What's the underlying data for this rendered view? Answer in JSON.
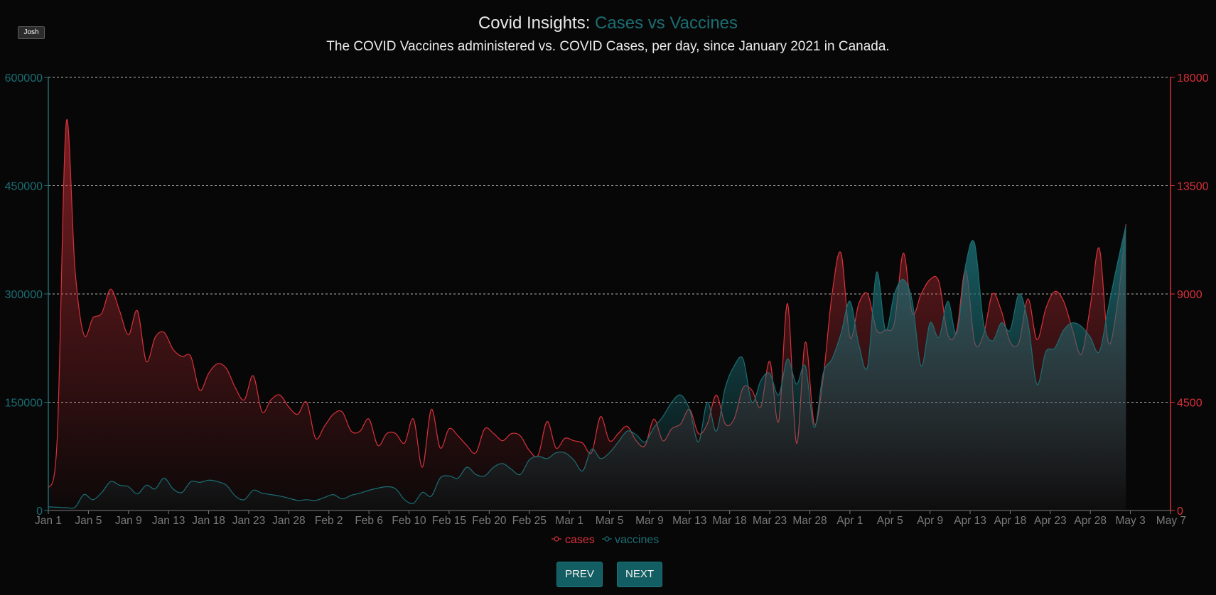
{
  "user": {
    "label": "Josh"
  },
  "header": {
    "title_prefix": "Covid Insights: ",
    "title_accent": "Cases vs Vaccines",
    "subtitle": "The COVID Vaccines administered vs. COVID Cases, per day, since January 2021 in Canada."
  },
  "colors": {
    "cases": "#d8313a",
    "vaccines": "#1b6e74",
    "grid": "#cfcfcf",
    "tick_text": "#7a7a7a"
  },
  "chart_data": {
    "type": "area",
    "x_ticks": [
      "Jan 1",
      "Jan 5",
      "Jan 9",
      "Jan 13",
      "Jan 18",
      "Jan 23",
      "Jan 28",
      "Feb 2",
      "Feb 6",
      "Feb 10",
      "Feb 15",
      "Feb 20",
      "Feb 25",
      "Mar 1",
      "Mar 5",
      "Mar 9",
      "Mar 13",
      "Mar 18",
      "Mar 23",
      "Mar 28",
      "Apr 1",
      "Apr 5",
      "Apr 9",
      "Apr 13",
      "Apr 18",
      "Apr 23",
      "Apr 28",
      "May 3",
      "May 7"
    ],
    "x_range_days": [
      0,
      126
    ],
    "y_left": {
      "ticks": [
        "0",
        "150000",
        "300000",
        "450000",
        "600000"
      ],
      "ylim": [
        0,
        600000
      ],
      "series": "vaccines"
    },
    "y_right": {
      "ticks": [
        "0",
        "4500",
        "9000",
        "13500",
        "18000"
      ],
      "ylim": [
        0,
        18000
      ],
      "series": "cases"
    },
    "grid": "horizontal dashed",
    "legend": "bottom-center",
    "series": [
      {
        "name": "cases",
        "axis": "right",
        "points": [
          [
            0,
            900
          ],
          [
            1,
            3000
          ],
          [
            2,
            16100
          ],
          [
            3,
            10000
          ],
          [
            4,
            7300
          ],
          [
            5,
            8000
          ],
          [
            6,
            8200
          ],
          [
            7,
            9200
          ],
          [
            8,
            8300
          ],
          [
            9,
            7300
          ],
          [
            10,
            8300
          ],
          [
            11,
            6200
          ],
          [
            12,
            7200
          ],
          [
            13,
            7400
          ],
          [
            14,
            6700
          ],
          [
            15,
            6400
          ],
          [
            16,
            6400
          ],
          [
            17,
            5000
          ],
          [
            18,
            5700
          ],
          [
            19,
            6100
          ],
          [
            20,
            5900
          ],
          [
            21,
            5100
          ],
          [
            22,
            4600
          ],
          [
            23,
            5600
          ],
          [
            24,
            4100
          ],
          [
            25,
            4600
          ],
          [
            26,
            4800
          ],
          [
            27,
            4300
          ],
          [
            28,
            4000
          ],
          [
            29,
            4500
          ],
          [
            30,
            3000
          ],
          [
            31,
            3500
          ],
          [
            32,
            4000
          ],
          [
            33,
            4100
          ],
          [
            34,
            3300
          ],
          [
            35,
            3300
          ],
          [
            36,
            3800
          ],
          [
            37,
            2700
          ],
          [
            38,
            3200
          ],
          [
            39,
            3200
          ],
          [
            40,
            2800
          ],
          [
            41,
            3800
          ],
          [
            42,
            1800
          ],
          [
            43,
            4200
          ],
          [
            44,
            2600
          ],
          [
            45,
            3400
          ],
          [
            46,
            3100
          ],
          [
            47,
            2700
          ],
          [
            48,
            2400
          ],
          [
            49,
            3400
          ],
          [
            50,
            3200
          ],
          [
            51,
            2900
          ],
          [
            52,
            3200
          ],
          [
            53,
            3100
          ],
          [
            54,
            2500
          ],
          [
            55,
            2300
          ],
          [
            56,
            3700
          ],
          [
            57,
            2600
          ],
          [
            58,
            3000
          ],
          [
            59,
            2900
          ],
          [
            60,
            2800
          ],
          [
            61,
            2400
          ],
          [
            62,
            3900
          ],
          [
            63,
            2900
          ],
          [
            64,
            3200
          ],
          [
            65,
            3500
          ],
          [
            66,
            2900
          ],
          [
            67,
            2700
          ],
          [
            68,
            3800
          ],
          [
            69,
            2900
          ],
          [
            70,
            3400
          ],
          [
            71,
            3600
          ],
          [
            72,
            4200
          ],
          [
            73,
            3200
          ],
          [
            74,
            3600
          ],
          [
            75,
            4800
          ],
          [
            76,
            3600
          ],
          [
            77,
            3800
          ],
          [
            78,
            5100
          ],
          [
            79,
            5000
          ],
          [
            80,
            4300
          ],
          [
            81,
            6200
          ],
          [
            82,
            3700
          ],
          [
            83,
            8600
          ],
          [
            84,
            2800
          ],
          [
            85,
            7000
          ],
          [
            86,
            3600
          ],
          [
            87,
            5500
          ],
          [
            88,
            9000
          ],
          [
            89,
            10700
          ],
          [
            90,
            7200
          ],
          [
            91,
            8600
          ],
          [
            92,
            9000
          ],
          [
            93,
            7500
          ],
          [
            94,
            7500
          ],
          [
            95,
            7800
          ],
          [
            96,
            10700
          ],
          [
            97,
            8200
          ],
          [
            98,
            9000
          ],
          [
            99,
            9600
          ],
          [
            100,
            9500
          ],
          [
            101,
            7300
          ],
          [
            102,
            7500
          ],
          [
            103,
            10000
          ],
          [
            104,
            7000
          ],
          [
            105,
            7300
          ],
          [
            106,
            9000
          ],
          [
            107,
            8300
          ],
          [
            108,
            7000
          ],
          [
            109,
            7000
          ],
          [
            110,
            8800
          ],
          [
            111,
            7100
          ],
          [
            112,
            8400
          ],
          [
            113,
            9100
          ],
          [
            114,
            8700
          ],
          [
            115,
            7500
          ],
          [
            116,
            6500
          ],
          [
            117,
            8500
          ],
          [
            118,
            10900
          ],
          [
            119,
            7000
          ],
          [
            120,
            8500
          ],
          [
            121,
            11900
          ]
        ]
      },
      {
        "name": "vaccines",
        "axis": "left",
        "points": [
          [
            0,
            5000
          ],
          [
            1,
            4500
          ],
          [
            2,
            4000
          ],
          [
            3,
            4500
          ],
          [
            4,
            22000
          ],
          [
            5,
            15000
          ],
          [
            6,
            25000
          ],
          [
            7,
            40000
          ],
          [
            8,
            35000
          ],
          [
            9,
            33000
          ],
          [
            10,
            23000
          ],
          [
            11,
            35000
          ],
          [
            12,
            30000
          ],
          [
            13,
            45000
          ],
          [
            14,
            30000
          ],
          [
            15,
            25000
          ],
          [
            16,
            40000
          ],
          [
            17,
            39000
          ],
          [
            18,
            42000
          ],
          [
            19,
            40000
          ],
          [
            20,
            35000
          ],
          [
            21,
            20000
          ],
          [
            22,
            15000
          ],
          [
            23,
            28000
          ],
          [
            24,
            24000
          ],
          [
            25,
            22000
          ],
          [
            26,
            20000
          ],
          [
            27,
            17000
          ],
          [
            28,
            14000
          ],
          [
            29,
            15000
          ],
          [
            30,
            14000
          ],
          [
            31,
            18000
          ],
          [
            32,
            22000
          ],
          [
            33,
            16000
          ],
          [
            34,
            21000
          ],
          [
            35,
            24000
          ],
          [
            36,
            28000
          ],
          [
            37,
            31000
          ],
          [
            38,
            33000
          ],
          [
            39,
            30000
          ],
          [
            40,
            15000
          ],
          [
            41,
            10000
          ],
          [
            42,
            25000
          ],
          [
            43,
            20000
          ],
          [
            44,
            45000
          ],
          [
            45,
            48000
          ],
          [
            46,
            45000
          ],
          [
            47,
            60000
          ],
          [
            48,
            50000
          ],
          [
            49,
            48000
          ],
          [
            50,
            60000
          ],
          [
            51,
            65000
          ],
          [
            52,
            57000
          ],
          [
            53,
            50000
          ],
          [
            54,
            70000
          ],
          [
            55,
            75000
          ],
          [
            56,
            72000
          ],
          [
            57,
            80000
          ],
          [
            58,
            80000
          ],
          [
            59,
            70000
          ],
          [
            60,
            55000
          ],
          [
            61,
            85000
          ],
          [
            62,
            72000
          ],
          [
            63,
            80000
          ],
          [
            64,
            95000
          ],
          [
            65,
            110000
          ],
          [
            66,
            105000
          ],
          [
            67,
            95000
          ],
          [
            68,
            115000
          ],
          [
            69,
            130000
          ],
          [
            70,
            150000
          ],
          [
            71,
            160000
          ],
          [
            72,
            140000
          ],
          [
            73,
            95000
          ],
          [
            74,
            150000
          ],
          [
            75,
            110000
          ],
          [
            76,
            170000
          ],
          [
            77,
            200000
          ],
          [
            78,
            210000
          ],
          [
            79,
            150000
          ],
          [
            80,
            180000
          ],
          [
            81,
            190000
          ],
          [
            82,
            160000
          ],
          [
            83,
            210000
          ],
          [
            84,
            175000
          ],
          [
            85,
            200000
          ],
          [
            86,
            115000
          ],
          [
            87,
            190000
          ],
          [
            88,
            210000
          ],
          [
            89,
            245000
          ],
          [
            90,
            290000
          ],
          [
            91,
            230000
          ],
          [
            92,
            200000
          ],
          [
            93,
            330000
          ],
          [
            94,
            250000
          ],
          [
            95,
            300000
          ],
          [
            96,
            320000
          ],
          [
            97,
            290000
          ],
          [
            98,
            200000
          ],
          [
            99,
            260000
          ],
          [
            100,
            240000
          ],
          [
            101,
            290000
          ],
          [
            102,
            245000
          ],
          [
            103,
            340000
          ],
          [
            104,
            370000
          ],
          [
            105,
            260000
          ],
          [
            106,
            235000
          ],
          [
            107,
            260000
          ],
          [
            108,
            250000
          ],
          [
            109,
            300000
          ],
          [
            110,
            260000
          ],
          [
            111,
            175000
          ],
          [
            112,
            220000
          ],
          [
            113,
            225000
          ],
          [
            114,
            250000
          ],
          [
            115,
            260000
          ],
          [
            116,
            255000
          ],
          [
            117,
            240000
          ],
          [
            118,
            220000
          ],
          [
            119,
            280000
          ],
          [
            120,
            340000
          ],
          [
            121,
            395000
          ]
        ]
      }
    ]
  },
  "legend": {
    "cases_label": "cases",
    "vaccines_label": "vaccines"
  },
  "nav": {
    "prev_label": "PREV",
    "next_label": "NEXT"
  }
}
